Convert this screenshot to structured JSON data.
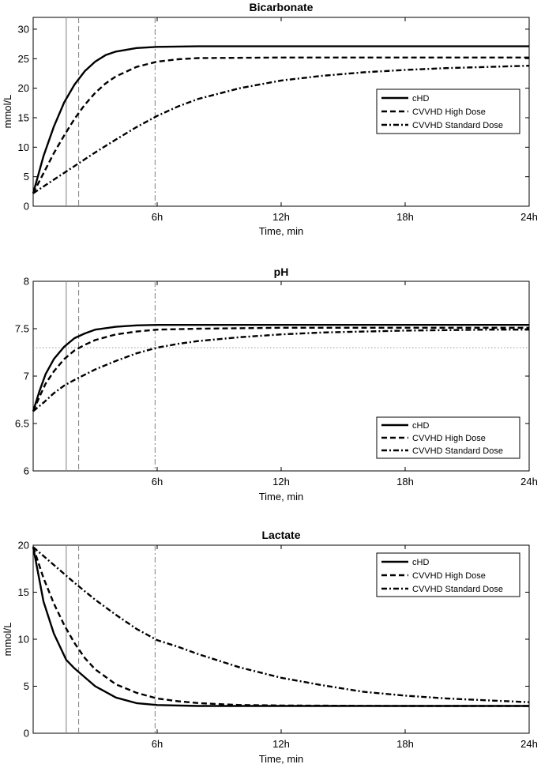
{
  "chart_data": [
    {
      "type": "line",
      "title": "Bicarbonate",
      "xlabel": "Time, min",
      "ylabel": "mmol/L",
      "xlim": [
        0,
        24
      ],
      "ylim": [
        0,
        32
      ],
      "xticks": [
        6,
        12,
        18,
        24
      ],
      "xtick_labels": [
        "6h",
        "12h",
        "18h",
        "24h"
      ],
      "yticks": [
        0,
        5,
        10,
        15,
        20,
        25,
        30
      ],
      "ytick_labels": [
        "0",
        "5",
        "10",
        "15",
        "20",
        "25",
        "30"
      ],
      "grid": false,
      "legend_position": "right",
      "vlines": [
        {
          "x": 1.6,
          "style": "solid"
        },
        {
          "x": 2.2,
          "style": "dashed"
        },
        {
          "x": 5.9,
          "style": "dashdot"
        }
      ],
      "hlines": [],
      "series": [
        {
          "name": "cHD",
          "style": "solid",
          "x": [
            0,
            0.5,
            1,
            1.5,
            2,
            2.5,
            3,
            3.5,
            4,
            5,
            6,
            8,
            12,
            18,
            24
          ],
          "y": [
            2.2,
            8.5,
            13.5,
            17.6,
            20.6,
            22.9,
            24.5,
            25.6,
            26.2,
            26.8,
            27.0,
            27.1,
            27.1,
            27.1,
            27.1
          ]
        },
        {
          "name": "CVVHD High Dose",
          "style": "dashed",
          "x": [
            0,
            0.5,
            1,
            1.5,
            2,
            2.5,
            3,
            3.5,
            4,
            5,
            6,
            7,
            8,
            12,
            18,
            24
          ],
          "y": [
            2.2,
            5.6,
            9.0,
            12.0,
            14.8,
            17.2,
            19.2,
            20.8,
            22.0,
            23.6,
            24.5,
            24.9,
            25.1,
            25.2,
            25.2,
            25.2
          ]
        },
        {
          "name": "CVVHD Standard Dose",
          "style": "dashdot",
          "x": [
            0,
            1,
            2,
            3,
            4,
            5,
            6,
            7,
            8,
            10,
            12,
            14,
            16,
            18,
            20,
            22,
            24
          ],
          "y": [
            2.2,
            4.5,
            6.8,
            9.1,
            11.3,
            13.4,
            15.3,
            16.9,
            18.2,
            20.0,
            21.3,
            22.1,
            22.7,
            23.1,
            23.4,
            23.6,
            23.8
          ]
        }
      ]
    },
    {
      "type": "line",
      "title": "pH",
      "xlabel": "Time, min",
      "ylabel": "",
      "xlim": [
        0,
        24
      ],
      "ylim": [
        6,
        8
      ],
      "xticks": [
        6,
        12,
        18,
        24
      ],
      "xtick_labels": [
        "6h",
        "12h",
        "18h",
        "24h"
      ],
      "yticks": [
        6,
        6.5,
        7,
        7.5,
        8
      ],
      "ytick_labels": [
        "6",
        "6.5",
        "7",
        "7.5",
        "8"
      ],
      "grid": false,
      "legend_position": "bottom-right",
      "vlines": [
        {
          "x": 1.6,
          "style": "solid"
        },
        {
          "x": 2.2,
          "style": "dashed"
        },
        {
          "x": 5.9,
          "style": "dashdot"
        }
      ],
      "hlines": [
        {
          "y": 7.3,
          "style": "dotted"
        }
      ],
      "series": [
        {
          "name": "cHD",
          "style": "solid",
          "x": [
            0,
            0.3,
            0.6,
            1,
            1.5,
            2,
            2.5,
            3,
            4,
            5,
            6,
            8,
            12,
            18,
            24
          ],
          "y": [
            6.63,
            6.84,
            7.02,
            7.18,
            7.31,
            7.4,
            7.45,
            7.49,
            7.52,
            7.535,
            7.54,
            7.54,
            7.54,
            7.54,
            7.54
          ]
        },
        {
          "name": "CVVHD High Dose",
          "style": "dashed",
          "x": [
            0,
            0.3,
            0.6,
            1,
            1.5,
            2,
            2.5,
            3,
            4,
            5,
            6,
            8,
            12,
            18,
            24
          ],
          "y": [
            6.63,
            6.78,
            6.92,
            7.05,
            7.18,
            7.27,
            7.33,
            7.38,
            7.44,
            7.47,
            7.49,
            7.5,
            7.51,
            7.51,
            7.51
          ]
        },
        {
          "name": "CVVHD Standard Dose",
          "style": "dashdot",
          "x": [
            0,
            0.5,
            1,
            1.5,
            2,
            3,
            4,
            5,
            6,
            7,
            8,
            10,
            12,
            14,
            16,
            18,
            20,
            22,
            24
          ],
          "y": [
            6.63,
            6.72,
            6.82,
            6.9,
            6.96,
            7.07,
            7.16,
            7.24,
            7.3,
            7.34,
            7.37,
            7.41,
            7.44,
            7.46,
            7.47,
            7.48,
            7.485,
            7.49,
            7.49
          ]
        }
      ]
    },
    {
      "type": "line",
      "title": "Lactate",
      "xlabel": "Time, min",
      "ylabel": "mmol/L",
      "xlim": [
        0,
        24
      ],
      "ylim": [
        0,
        20
      ],
      "xticks": [
        6,
        12,
        18,
        24
      ],
      "xtick_labels": [
        "6h",
        "12h",
        "18h",
        "24h"
      ],
      "yticks": [
        0,
        5,
        10,
        15,
        20
      ],
      "ytick_labels": [
        "0",
        "5",
        "10",
        "15",
        "20"
      ],
      "grid": false,
      "legend_position": "top-right",
      "vlines": [
        {
          "x": 1.6,
          "style": "solid"
        },
        {
          "x": 2.2,
          "style": "dashed"
        },
        {
          "x": 5.9,
          "style": "dashdot"
        }
      ],
      "hlines": [],
      "series": [
        {
          "name": "cHD",
          "style": "solid",
          "x": [
            0,
            0.5,
            1,
            1.6,
            2,
            3,
            4,
            5,
            6,
            8,
            12,
            18,
            24
          ],
          "y": [
            19.8,
            14.0,
            10.6,
            7.8,
            6.9,
            5.0,
            3.8,
            3.2,
            3.0,
            2.9,
            2.9,
            2.9,
            2.9
          ]
        },
        {
          "name": "CVVHD High Dose",
          "style": "dashed",
          "x": [
            0,
            0.5,
            1,
            1.5,
            2,
            2.5,
            3,
            4,
            5,
            6,
            7,
            8,
            10,
            12,
            18,
            24
          ],
          "y": [
            19.8,
            16.5,
            13.8,
            11.5,
            9.6,
            8.0,
            6.8,
            5.2,
            4.3,
            3.7,
            3.4,
            3.2,
            3.0,
            2.95,
            2.9,
            2.9
          ]
        },
        {
          "name": "CVVHD Standard Dose",
          "style": "dashdot",
          "x": [
            0,
            1,
            2,
            3,
            4,
            5,
            6,
            7,
            8,
            10,
            12,
            14,
            16,
            18,
            20,
            22,
            24
          ],
          "y": [
            19.8,
            17.9,
            16.0,
            14.2,
            12.6,
            11.1,
            9.9,
            9.2,
            8.4,
            7.0,
            5.9,
            5.1,
            4.4,
            4.0,
            3.7,
            3.5,
            3.3
          ]
        }
      ]
    }
  ]
}
